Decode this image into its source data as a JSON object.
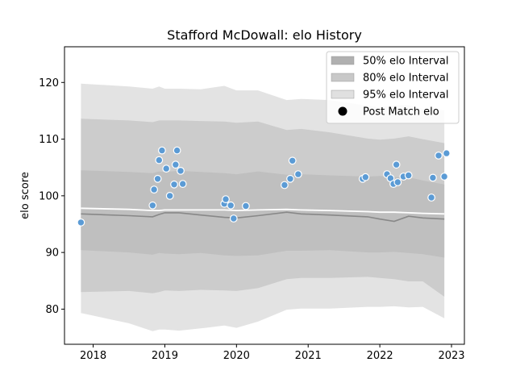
{
  "chart_data": {
    "type": "scatter",
    "title": "Stafford McDowall: elo History",
    "xlabel": "",
    "ylabel": "elo score",
    "xlim": [
      2017.6,
      2023.18
    ],
    "ylim": [
      73.8,
      126.3
    ],
    "xticks": [
      2018,
      2019,
      2020,
      2021,
      2022,
      2023
    ],
    "xtick_labels": [
      "2018",
      "2019",
      "2020",
      "2021",
      "2022",
      "2023"
    ],
    "yticks": [
      80,
      90,
      100,
      110,
      120
    ],
    "ytick_labels": [
      "80",
      "90",
      "100",
      "110",
      "120"
    ],
    "grid": false,
    "legend_position": "top-right",
    "legend": [
      {
        "label": "50% elo Interval",
        "kind": "patch",
        "color": "#b0b0b0"
      },
      {
        "label": "80% elo Interval",
        "kind": "patch",
        "color": "#c8c8c8"
      },
      {
        "label": "95% elo Interval",
        "kind": "patch",
        "color": "#e0e0e0"
      },
      {
        "label": "Post Match elo",
        "kind": "marker",
        "color": "#000000"
      }
    ],
    "colors": {
      "band95": "#e3e3e3",
      "band80": "#cccccc",
      "band50": "#bfbfbf",
      "median": "#ffffff",
      "mean": "#888888",
      "point": "#5b9bd5",
      "point_edge": "#ffffff"
    },
    "interval_x": [
      2017.83,
      2018.5,
      2018.83,
      2018.92,
      2019.0,
      2019.2,
      2019.5,
      2019.83,
      2020.0,
      2020.3,
      2020.7,
      2020.9,
      2021.3,
      2021.83,
      2022.0,
      2022.2,
      2022.4,
      2022.6,
      2022.9
    ],
    "band95": {
      "upper": [
        119.8,
        119.3,
        118.9,
        119.3,
        118.9,
        118.9,
        118.8,
        119.4,
        118.6,
        118.6,
        116.9,
        117.1,
        116.9,
        115.9,
        115.6,
        116.0,
        116.0,
        115.3,
        115.1
      ],
      "lower": [
        79.3,
        77.5,
        76.1,
        76.4,
        76.4,
        76.2,
        76.6,
        77.1,
        76.7,
        77.8,
        79.9,
        80.1,
        80.1,
        80.4,
        80.4,
        80.5,
        80.3,
        80.4,
        78.4
      ]
    },
    "band80": {
      "upper": [
        113.6,
        113.3,
        113.0,
        113.3,
        113.3,
        113.3,
        113.2,
        113.1,
        112.9,
        113.1,
        111.6,
        111.8,
        111.2,
        110.1,
        109.9,
        110.1,
        110.5,
        110.0,
        109.3
      ]
    },
    "band80_lower": [
      83.0,
      83.2,
      82.8,
      83.0,
      83.3,
      83.2,
      83.4,
      83.3,
      83.2,
      83.7,
      85.3,
      85.5,
      85.5,
      85.7,
      85.5,
      85.3,
      84.9,
      84.9,
      82.2
    ],
    "band50": {
      "upper": [
        104.5,
        104.2,
        104.0,
        104.3,
        104.2,
        104.4,
        104.2,
        104.0,
        103.8,
        104.3,
        103.7,
        103.8,
        103.6,
        103.4,
        103.5,
        103.3,
        103.3,
        102.7,
        102.0
      ],
      "lower": [
        90.4,
        90.0,
        89.6,
        89.9,
        89.8,
        89.7,
        89.9,
        89.5,
        89.4,
        89.5,
        90.3,
        90.3,
        90.4,
        90.0,
        90.0,
        90.1,
        89.9,
        89.7,
        89.1
      ]
    },
    "median_line": [
      97.8,
      97.6,
      97.4,
      97.4,
      97.5,
      97.5,
      97.5,
      97.5,
      97.4,
      97.5,
      97.6,
      97.5,
      97.4,
      97.2,
      97.1,
      97.1,
      97.0,
      96.9,
      96.8
    ],
    "mean_line": [
      96.8,
      96.5,
      96.3,
      96.7,
      97.0,
      97.0,
      96.6,
      96.2,
      96.1,
      96.5,
      97.1,
      96.8,
      96.6,
      96.3,
      95.9,
      95.5,
      96.4,
      96.1,
      95.9
    ],
    "points": [
      {
        "x": 2017.83,
        "y": 95.3
      },
      {
        "x": 2018.83,
        "y": 98.3
      },
      {
        "x": 2018.85,
        "y": 101.1
      },
      {
        "x": 2018.9,
        "y": 103.0
      },
      {
        "x": 2018.92,
        "y": 106.3
      },
      {
        "x": 2018.96,
        "y": 108.0
      },
      {
        "x": 2019.02,
        "y": 104.8
      },
      {
        "x": 2019.07,
        "y": 100.0
      },
      {
        "x": 2019.13,
        "y": 102.0
      },
      {
        "x": 2019.15,
        "y": 105.5
      },
      {
        "x": 2019.17,
        "y": 108.0
      },
      {
        "x": 2019.22,
        "y": 104.4
      },
      {
        "x": 2019.25,
        "y": 102.1
      },
      {
        "x": 2019.83,
        "y": 98.6
      },
      {
        "x": 2019.85,
        "y": 99.4
      },
      {
        "x": 2019.92,
        "y": 98.3
      },
      {
        "x": 2019.96,
        "y": 96.0
      },
      {
        "x": 2020.13,
        "y": 98.2
      },
      {
        "x": 2020.67,
        "y": 101.9
      },
      {
        "x": 2020.75,
        "y": 103.0
      },
      {
        "x": 2020.78,
        "y": 106.2
      },
      {
        "x": 2020.86,
        "y": 103.8
      },
      {
        "x": 2021.76,
        "y": 103.0
      },
      {
        "x": 2021.8,
        "y": 103.3
      },
      {
        "x": 2022.1,
        "y": 103.8
      },
      {
        "x": 2022.15,
        "y": 103.1
      },
      {
        "x": 2022.19,
        "y": 102.1
      },
      {
        "x": 2022.23,
        "y": 105.5
      },
      {
        "x": 2022.25,
        "y": 102.4
      },
      {
        "x": 2022.33,
        "y": 103.4
      },
      {
        "x": 2022.4,
        "y": 103.6
      },
      {
        "x": 2022.72,
        "y": 99.7
      },
      {
        "x": 2022.74,
        "y": 103.2
      },
      {
        "x": 2022.82,
        "y": 107.1
      },
      {
        "x": 2022.9,
        "y": 103.4
      },
      {
        "x": 2022.93,
        "y": 107.5
      }
    ]
  }
}
